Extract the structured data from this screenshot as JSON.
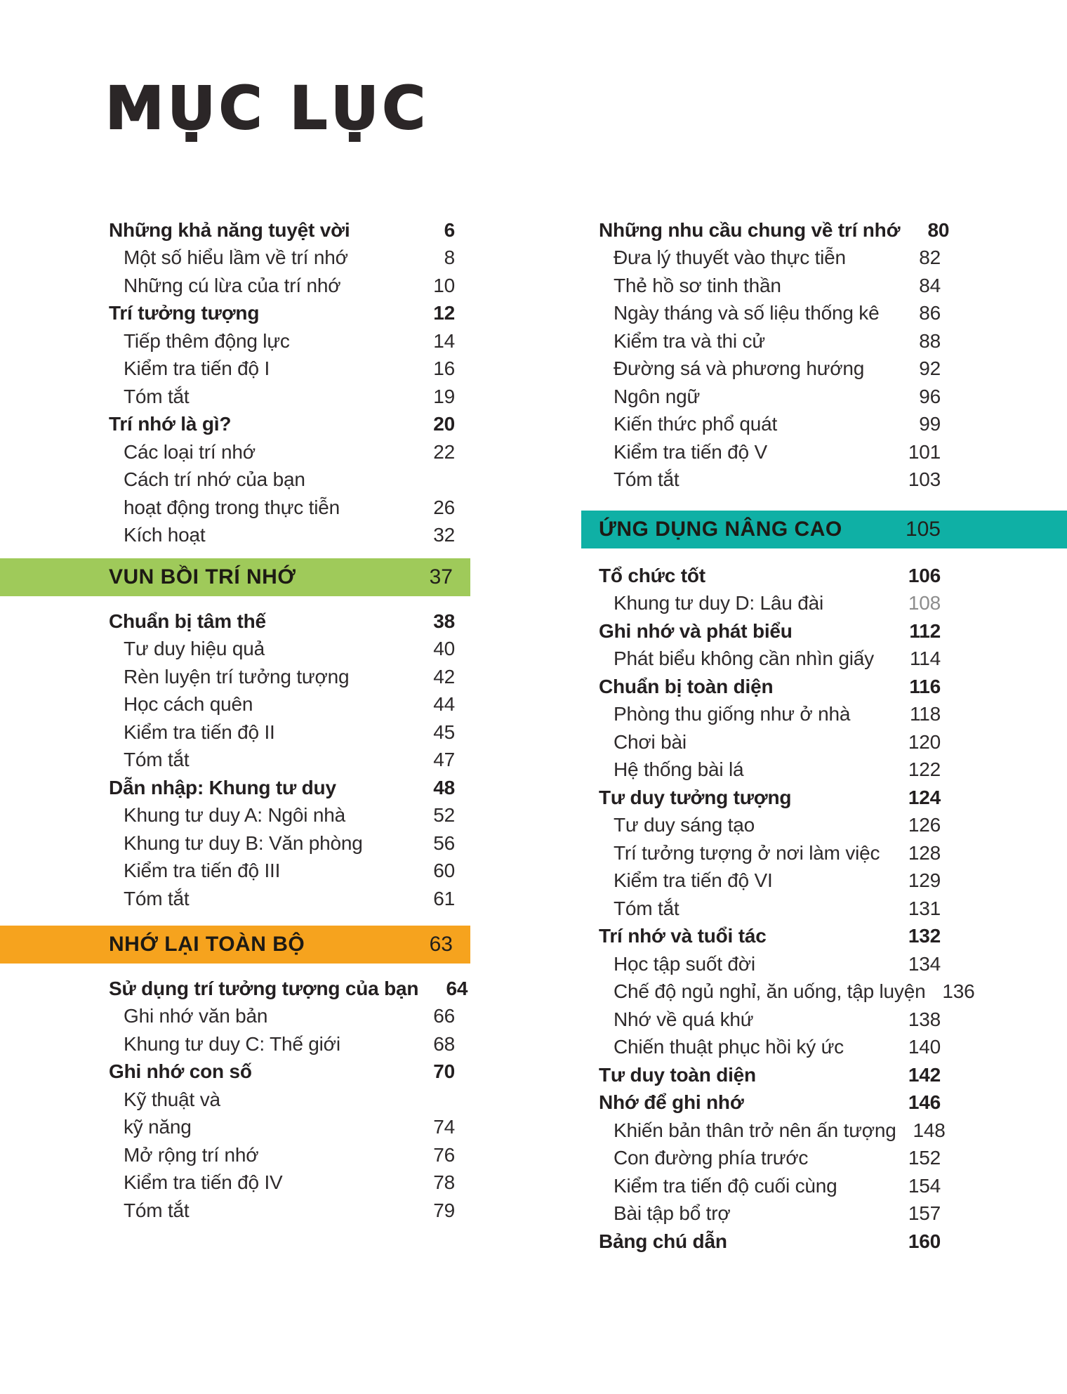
{
  "title": "MỤC LỤC",
  "colors": {
    "green": "#9fca5a",
    "orange": "#f6a31e",
    "teal": "#0fb0a5",
    "text": "#272324",
    "gray_page": "#8d8d8d"
  },
  "bands": {
    "green": {
      "label": "VUN BỒI TRÍ NHỚ",
      "page": "37"
    },
    "orange": {
      "label": "NHỚ LẠI TOÀN BỘ",
      "page": "63"
    },
    "teal": {
      "label": "ỨNG DỤNG NÂNG CAO",
      "page": "105"
    }
  },
  "left_blocks": [
    [
      {
        "label": "Những khả năng tuyệt vời",
        "page": "6",
        "bold": true
      },
      {
        "label": "Một số hiểu lầm về trí nhớ",
        "page": "8",
        "indent": true
      },
      {
        "label": "Những cú lừa của trí nhớ",
        "page": "10",
        "indent": true
      },
      {
        "label": "Trí tưởng tượng",
        "page": "12",
        "bold": true
      },
      {
        "label": "Tiếp thêm động lực",
        "page": "14",
        "indent": true
      },
      {
        "label": "Kiểm tra tiến độ I",
        "page": "16",
        "indent": true
      },
      {
        "label": "Tóm tắt",
        "page": "19",
        "indent": true
      },
      {
        "label": "Trí nhớ là gì?",
        "page": "20",
        "bold": true
      },
      {
        "label": "Các loại trí nhớ",
        "page": "22",
        "indent": true
      },
      {
        "label": "Cách trí nhớ của bạn",
        "page": "",
        "indent": true
      },
      {
        "label": "hoạt động trong thực tiễn",
        "page": "26",
        "indent": true
      },
      {
        "label": "Kích hoạt",
        "page": "32",
        "indent": true
      }
    ],
    [
      {
        "label": "Chuẩn bị tâm thế",
        "page": "38",
        "bold": true
      },
      {
        "label": "Tư duy hiệu quả",
        "page": "40",
        "indent": true
      },
      {
        "label": "Rèn luyện trí tưởng tượng",
        "page": "42",
        "indent": true
      },
      {
        "label": "Học cách quên",
        "page": "44",
        "indent": true
      },
      {
        "label": "Kiểm tra tiến độ II",
        "page": "45",
        "indent": true
      },
      {
        "label": "Tóm tắt",
        "page": "47",
        "indent": true
      },
      {
        "label": "Dẫn nhập: Khung tư duy",
        "page": "48",
        "bold": true
      },
      {
        "label": "Khung tư duy A: Ngôi nhà",
        "page": "52",
        "indent": true
      },
      {
        "label": "Khung tư duy B: Văn phòng",
        "page": "56",
        "indent": true
      },
      {
        "label": "Kiểm tra tiến độ III",
        "page": "60",
        "indent": true
      },
      {
        "label": "Tóm tắt",
        "page": "61",
        "indent": true
      }
    ],
    [
      {
        "label": "Sử dụng trí tưởng tượng của bạn",
        "page": "64",
        "bold": true
      },
      {
        "label": "Ghi nhớ văn bản",
        "page": "66",
        "indent": true
      },
      {
        "label": "Khung tư duy C: Thế giới",
        "page": "68",
        "indent": true
      },
      {
        "label": "Ghi nhớ con số",
        "page": "70",
        "bold": true
      },
      {
        "label": "Kỹ thuật và",
        "page": "",
        "indent": true
      },
      {
        "label": "kỹ năng",
        "page": "74",
        "indent": true
      },
      {
        "label": "Mở rộng trí nhớ",
        "page": "76",
        "indent": true
      },
      {
        "label": "Kiểm tra tiến độ IV",
        "page": "78",
        "indent": true
      },
      {
        "label": "Tóm tắt",
        "page": "79",
        "indent": true
      }
    ]
  ],
  "right_blocks": [
    [
      {
        "label": "Những nhu cầu chung về trí nhớ",
        "page": "80",
        "bold": true
      },
      {
        "label": "Đưa lý thuyết vào thực tiễn",
        "page": "82",
        "indent": true
      },
      {
        "label": "Thẻ hồ sơ tinh thần",
        "page": "84",
        "indent": true
      },
      {
        "label": "Ngày tháng và số liệu thống kê",
        "page": "86",
        "indent": true
      },
      {
        "label": "Kiểm tra và thi cử",
        "page": "88",
        "indent": true
      },
      {
        "label": "Đường sá và phương hướng",
        "page": "92",
        "indent": true
      },
      {
        "label": "Ngôn ngữ",
        "page": "96",
        "indent": true
      },
      {
        "label": "Kiến thức phổ quát",
        "page": "99",
        "indent": true
      },
      {
        "label": "Kiểm tra tiến độ V",
        "page": "101",
        "indent": true
      },
      {
        "label": "Tóm tắt",
        "page": "103",
        "indent": true
      }
    ],
    [
      {
        "label": "Tổ chức tốt",
        "page": "106",
        "bold": true
      },
      {
        "label": "Khung tư duy D: Lâu đài",
        "page": "108",
        "indent": true,
        "gray": true
      },
      {
        "label": "Ghi nhớ và phát biểu",
        "page": "112",
        "bold": true
      },
      {
        "label": "Phát biểu không cần nhìn giấy",
        "page": "114",
        "indent": true
      },
      {
        "label": "Chuẩn bị toàn diện",
        "page": "116",
        "bold": true
      },
      {
        "label": "Phòng thu giống như ở nhà",
        "page": "118",
        "indent": true
      },
      {
        "label": "Chơi bài",
        "page": "120",
        "indent": true
      },
      {
        "label": "Hệ thống bài lá",
        "page": "122",
        "indent": true
      },
      {
        "label": "Tư duy tưởng tượng",
        "page": "124",
        "bold": true
      },
      {
        "label": "Tư duy sáng tạo",
        "page": "126",
        "indent": true
      },
      {
        "label": "Trí tưởng tượng ở nơi làm việc",
        "page": "128",
        "indent": true
      },
      {
        "label": "Kiểm tra tiến độ VI",
        "page": "129",
        "indent": true
      },
      {
        "label": "Tóm tắt",
        "page": "131",
        "indent": true
      },
      {
        "label": "Trí nhớ và tuổi tác",
        "page": "132",
        "bold": true
      },
      {
        "label": "Học tập suốt đời",
        "page": "134",
        "indent": true
      },
      {
        "label": "Chế độ ngủ nghỉ, ăn uống, tập luyện",
        "page": "136",
        "indent": true
      },
      {
        "label": "Nhớ về quá khứ",
        "page": "138",
        "indent": true
      },
      {
        "label": "Chiến thuật phục hồi ký ức",
        "page": "140",
        "indent": true
      },
      {
        "label": "Tư duy toàn diện",
        "page": "142",
        "bold": true
      },
      {
        "label": "Nhớ để ghi nhớ",
        "page": "146",
        "bold": true
      },
      {
        "label": "Khiến bản thân trở nên ấn tượng",
        "page": "148",
        "indent": true
      },
      {
        "label": "Con đường phía trước",
        "page": "152",
        "indent": true
      },
      {
        "label": "Kiểm tra tiến độ cuối cùng",
        "page": "154",
        "indent": true
      },
      {
        "label": "Bài tập bổ trợ",
        "page": "157",
        "indent": true
      },
      {
        "label": "Bảng chú dẫn",
        "page": "160",
        "bold": true
      }
    ]
  ]
}
